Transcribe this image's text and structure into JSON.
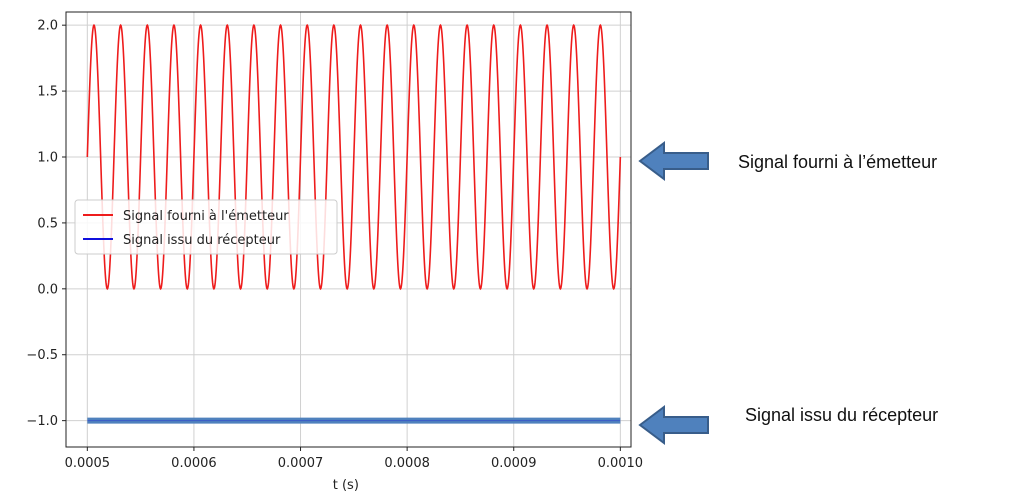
{
  "chart_data": {
    "type": "line",
    "xlabel": "t (s)",
    "ylabel": "",
    "xlim": [
      0.00048,
      0.00101
    ],
    "ylim": [
      -1.2,
      2.1
    ],
    "x_ticks": [
      {
        "v": 0.0005,
        "label": "0.0005"
      },
      {
        "v": 0.0006,
        "label": "0.0006"
      },
      {
        "v": 0.0007,
        "label": "0.0007"
      },
      {
        "v": 0.0008,
        "label": "0.0008"
      },
      {
        "v": 0.0009,
        "label": "0.0009"
      },
      {
        "v": 0.001,
        "label": "0.0010"
      }
    ],
    "y_ticks": [
      {
        "v": 2.0,
        "label": "2.0"
      },
      {
        "v": 1.5,
        "label": "1.5"
      },
      {
        "v": 1.0,
        "label": "1.0"
      },
      {
        "v": 0.5,
        "label": "0.5"
      },
      {
        "v": 0.0,
        "label": "0.0"
      },
      {
        "v": -0.5,
        "label": "−0.5"
      },
      {
        "v": -1.0,
        "label": "−1.0"
      }
    ],
    "grid": true,
    "legend_position": "center-left",
    "series": [
      {
        "name": "Signal fourni à l'émetteur",
        "color": "#ee1c1c",
        "kind": "sinusoid",
        "offset": 1.0,
        "amplitude": 1.0,
        "frequency_hz": 40000,
        "x_start": 0.0005,
        "x_end": 0.001
      },
      {
        "name": "Signal issu du récepteur",
        "color": "#1010dd",
        "kind": "constant",
        "value": -1.0,
        "x_start": 0.0005,
        "x_end": 0.001
      }
    ]
  },
  "annotations": [
    {
      "text": "Signal fourni à l’émetteur",
      "y_value": 1.0
    },
    {
      "text": "Signal issu du récepteur",
      "y_value": -1.0
    }
  ],
  "colors": {
    "arrow_fill": "#4f81bd",
    "arrow_stroke": "#385d8a",
    "receiver_band": "#4f81bd"
  }
}
